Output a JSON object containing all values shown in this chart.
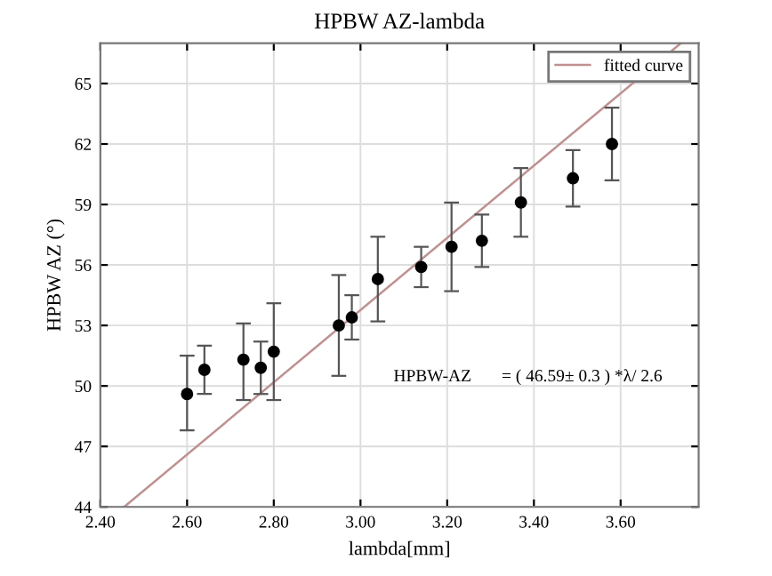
{
  "chart_data": {
    "type": "scatter",
    "title": "HPBW AZ-lambda",
    "xlabel": "lambda[mm]",
    "ylabel": "HPBW AZ (°)",
    "xlim": [
      2.4,
      3.78
    ],
    "ylim": [
      44,
      67
    ],
    "xticks": [
      {
        "value": 2.4,
        "label": "2.40"
      },
      {
        "value": 2.6,
        "label": "2.60"
      },
      {
        "value": 2.8,
        "label": "2.80"
      },
      {
        "value": 3.0,
        "label": "3.00"
      },
      {
        "value": 3.2,
        "label": "3.20"
      },
      {
        "value": 3.4,
        "label": "3.40"
      },
      {
        "value": 3.6,
        "label": "3.60"
      }
    ],
    "yticks": [
      44,
      47,
      50,
      53,
      56,
      59,
      62,
      65
    ],
    "grid": true,
    "legend": "top right",
    "annotations": [
      "HPBW-AZ       = ( 46.59± 0.3 ) *λ/ 2.6"
    ],
    "series": [
      {
        "marker": "circle",
        "color": "#000000",
        "x": [
          2.6,
          2.64,
          2.73,
          2.77,
          2.8,
          2.95,
          2.98,
          3.04,
          3.14,
          3.21,
          3.28,
          3.37,
          3.49,
          3.58
        ],
        "values": [
          49.6,
          50.8,
          51.3,
          50.9,
          51.7,
          53.0,
          53.4,
          55.3,
          55.9,
          56.9,
          57.2,
          59.1,
          60.3,
          62.0
        ],
        "errors": [
          [
            47.8,
            51.5
          ],
          [
            49.6,
            52.0
          ],
          [
            49.3,
            53.1
          ],
          [
            49.6,
            52.2
          ],
          [
            49.3,
            54.1
          ],
          [
            50.5,
            55.5
          ],
          [
            52.3,
            54.5
          ],
          [
            53.2,
            57.4
          ],
          [
            54.9,
            56.9
          ],
          [
            54.7,
            59.1
          ],
          [
            55.9,
            58.5
          ],
          [
            57.4,
            60.8
          ],
          [
            58.9,
            61.7
          ],
          [
            60.2,
            63.8
          ]
        ]
      },
      {
        "type": "line",
        "name": "fitted curve",
        "color": "#c09090",
        "x": [
          2.455,
          3.739
        ],
        "values": [
          44,
          67
        ]
      }
    ]
  }
}
